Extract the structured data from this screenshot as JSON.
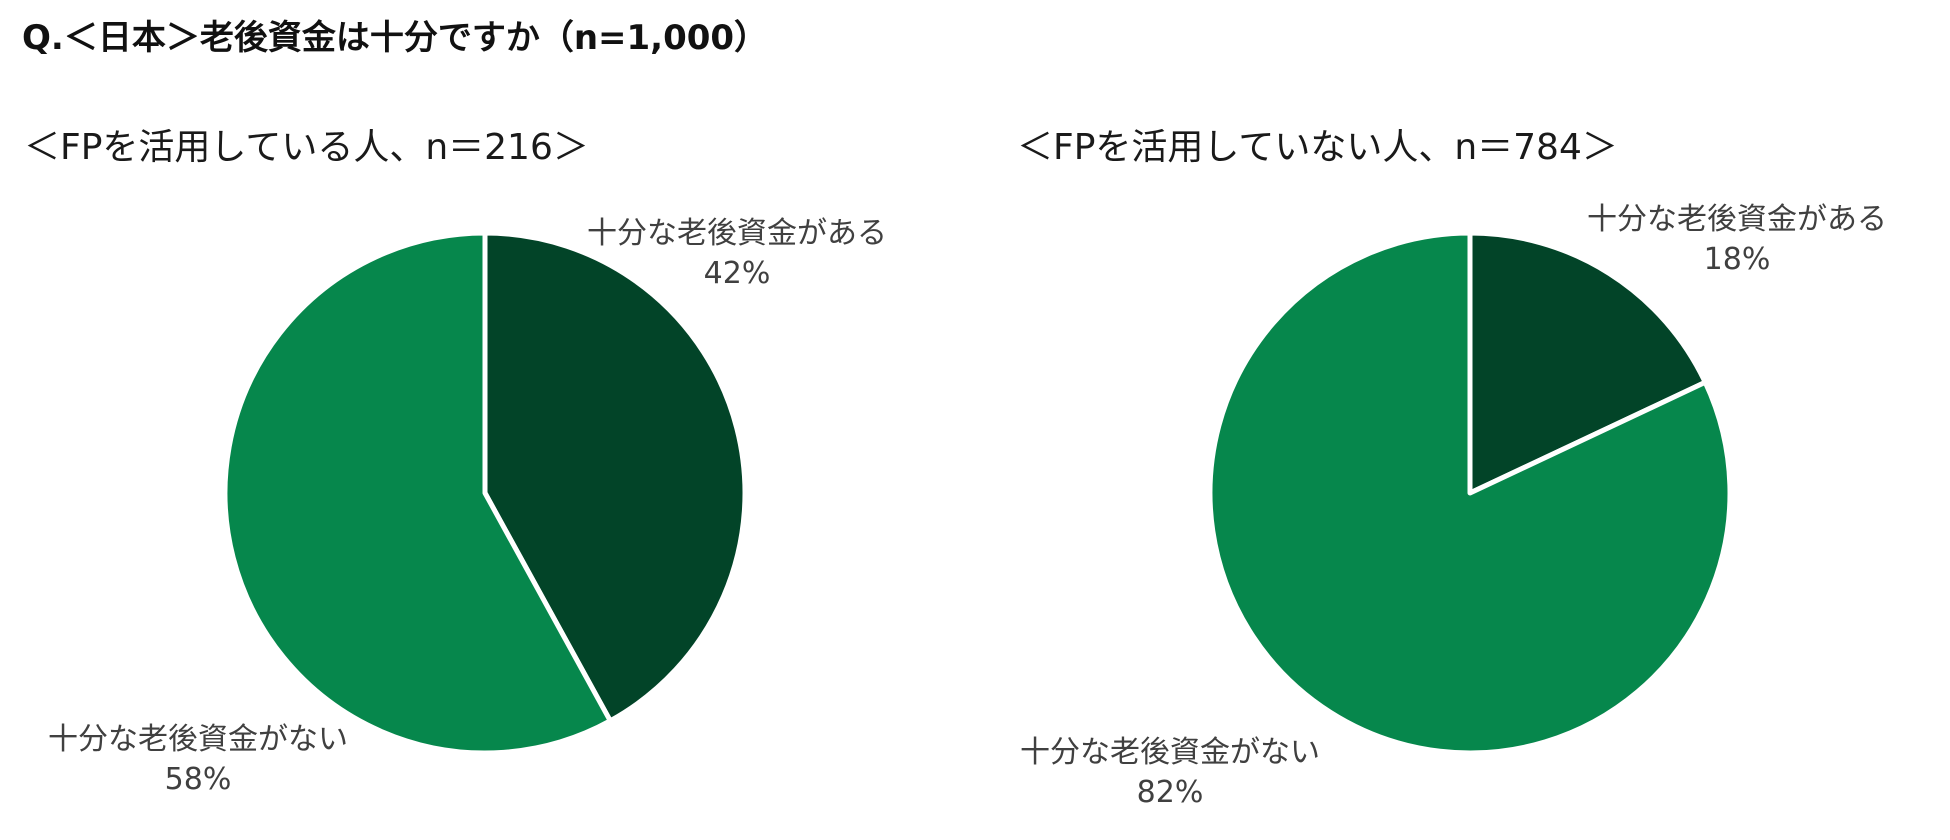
{
  "question": "Q.＜日本＞老後資金は十分ですか（n=1,000）",
  "colors": {
    "have_enough": "#024428",
    "not_enough": "#06874C",
    "separator": "#ffffff"
  },
  "chart_data": [
    {
      "type": "pie",
      "title": "＜FPを活用している人、n＝216＞",
      "slices": [
        {
          "label": "十分な老後資金がある",
          "value": 42,
          "value_label": "42%",
          "color": "#024428"
        },
        {
          "label": "十分な老後資金がない",
          "value": 58,
          "value_label": "58%",
          "color": "#06874C"
        }
      ]
    },
    {
      "type": "pie",
      "title": "＜FPを活用していない人、n＝784＞",
      "slices": [
        {
          "label": "十分な老後資金がある",
          "value": 18,
          "value_label": "18%",
          "color": "#024428"
        },
        {
          "label": "十分な老後資金がない",
          "value": 82,
          "value_label": "82%",
          "color": "#06874C"
        }
      ]
    }
  ]
}
